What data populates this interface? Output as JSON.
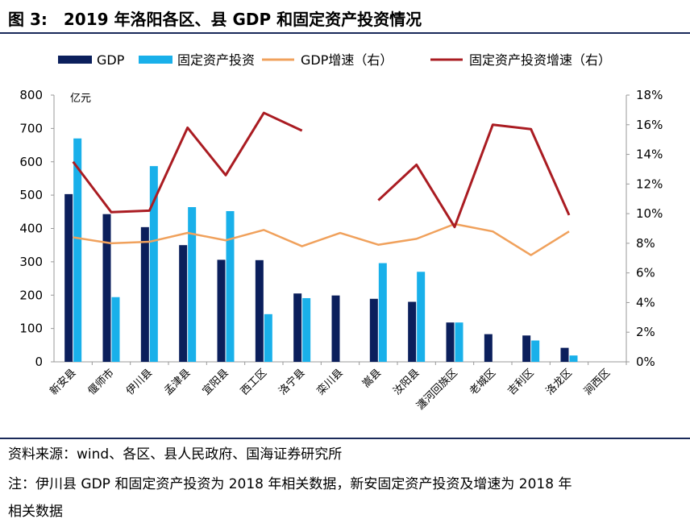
{
  "header": {
    "title": "图 3:　2019 年洛阳各区、县 GDP 和固定资产投资情况"
  },
  "footer": {
    "source": "资料来源：wind、各区、县人民政府、国海证券研究所",
    "note_line1": "注：伊川县 GDP 和固定资产投资为 2018 年相关数据，新安固定资产投资及增速为 2018 年",
    "note_line2": "相关数据"
  },
  "chart_data": {
    "type": "bar",
    "categories": [
      "新安县",
      "偃师市",
      "伊川县",
      "孟津县",
      "宜阳县",
      "西工区",
      "洛宁县",
      "栾川县",
      "嵩县",
      "汝阳县",
      "瀍河回族区",
      "老城区",
      "吉利区",
      "洛龙区",
      "涧西区"
    ],
    "series": [
      {
        "name": "GDP",
        "kind": "bar",
        "axis": "left",
        "color": "#0b1f5c",
        "values": [
          503,
          443,
          404,
          350,
          306,
          305,
          205,
          199,
          189,
          180,
          118,
          83,
          79,
          42,
          null
        ]
      },
      {
        "name": "固定资产投资",
        "kind": "bar",
        "axis": "left",
        "color": "#19b0ea",
        "values": [
          670,
          194,
          587,
          464,
          452,
          143,
          191,
          null,
          296,
          270,
          118,
          null,
          64,
          19,
          null
        ]
      },
      {
        "name": "GDP增速（右）",
        "kind": "line",
        "axis": "right",
        "color": "#f0a15c",
        "values": [
          8.4,
          8.0,
          8.1,
          8.7,
          8.2,
          8.9,
          7.8,
          8.7,
          7.9,
          8.3,
          9.3,
          8.8,
          7.2,
          8.8,
          null
        ]
      },
      {
        "name": "固定资产投资增速（右）",
        "kind": "line",
        "axis": "right",
        "color": "#aa1c22",
        "values": [
          13.5,
          10.1,
          10.2,
          15.8,
          12.6,
          16.8,
          15.6,
          null,
          10.9,
          13.3,
          9.1,
          16.0,
          15.7,
          9.9,
          null
        ]
      }
    ],
    "left_axis": {
      "ylim": [
        0,
        800
      ],
      "ticks": [
        "0",
        "100",
        "200",
        "300",
        "400",
        "500",
        "600",
        "700",
        "800"
      ],
      "unit": "亿元"
    },
    "right_axis": {
      "ylim": [
        0,
        18
      ],
      "ticks": [
        "0%",
        "2%",
        "4%",
        "6%",
        "8%",
        "10%",
        "12%",
        "14%",
        "16%",
        "18%"
      ]
    },
    "legend_position": "top",
    "grid": false
  }
}
